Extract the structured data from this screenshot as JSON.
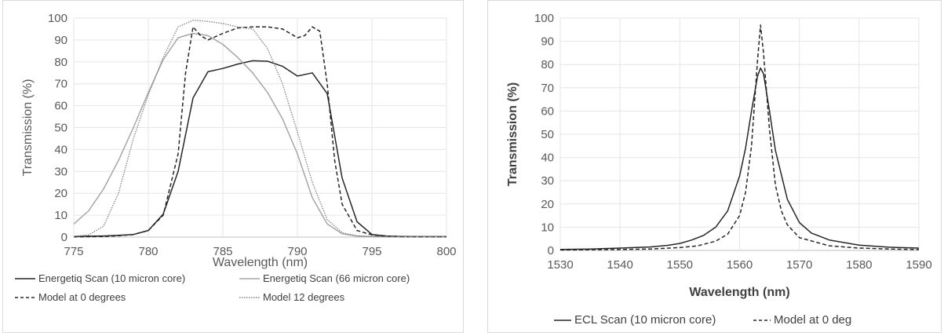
{
  "chart_data": [
    {
      "type": "line",
      "xlabel": "Wavelength (nm)",
      "ylabel": "Transmission (%)",
      "xlim": [
        775,
        800
      ],
      "ylim": [
        0,
        100
      ],
      "x_ticks": [
        "775",
        "780",
        "785",
        "790",
        "795",
        "800"
      ],
      "y_ticks": [
        "0",
        "10",
        "20",
        "30",
        "40",
        "50",
        "60",
        "70",
        "80",
        "90",
        "100"
      ],
      "grid": "major vertical and horizontal",
      "legend_position": "bottom",
      "series": [
        {
          "name": "Energetiq Scan (10 micron core)",
          "color": "#262626",
          "dash": "solid",
          "x": [
            775,
            776,
            777,
            778,
            779,
            780,
            781,
            782,
            783,
            784,
            785,
            786,
            787,
            788,
            789,
            790,
            791,
            792,
            793,
            794,
            795,
            796,
            797,
            798,
            799,
            800
          ],
          "y": [
            0.3,
            0.4,
            0.5,
            0.8,
            1.2,
            3,
            10.5,
            30,
            63.5,
            75.5,
            77,
            79,
            80.5,
            80.3,
            78,
            73.5,
            75,
            65.5,
            27,
            7,
            1.2,
            0.5,
            0.3,
            0.2,
            0.2,
            0.2
          ]
        },
        {
          "name": "Energetiq Scan (66 micron core)",
          "color": "#a6a6a6",
          "dash": "solid",
          "x": [
            775,
            776,
            777,
            778,
            779,
            780,
            781,
            782,
            783,
            784,
            785,
            786,
            787,
            788,
            789,
            790,
            791,
            792,
            793,
            794,
            795,
            796,
            797,
            798,
            799,
            800
          ],
          "y": [
            6,
            12,
            22,
            35,
            50,
            66,
            81,
            91,
            93,
            92,
            88,
            82,
            75,
            66,
            54,
            38,
            18,
            6,
            1.5,
            0.5,
            0.2,
            0.2,
            0.1,
            0.1,
            0.1,
            0.1
          ]
        },
        {
          "name": "Model at 0 degrees",
          "color": "#262626",
          "dash": "dashed",
          "x": [
            775,
            776,
            777,
            778,
            779,
            780,
            781,
            782,
            782.5,
            783,
            783.5,
            784,
            785,
            786,
            787,
            788,
            789,
            790,
            790.5,
            791,
            791.5,
            792,
            792.5,
            793,
            794,
            795,
            796,
            797,
            798,
            799,
            800
          ],
          "y": [
            0.1,
            0.2,
            0.3,
            0.6,
            1.2,
            3,
            10,
            38,
            75,
            96,
            92,
            90,
            93,
            95.5,
            96,
            96,
            95,
            91,
            92,
            96,
            94,
            70,
            35,
            15,
            3,
            1,
            0.4,
            0.2,
            0.1,
            0.1,
            0.1
          ]
        },
        {
          "name": "Model 12 degrees",
          "color": "#7f7f7f",
          "dash": "dotted",
          "x": [
            775,
            776,
            777,
            778,
            779,
            780,
            781,
            782,
            783,
            784,
            785,
            786,
            787,
            788,
            789,
            790,
            791,
            792,
            793,
            794,
            795,
            796,
            797,
            798,
            799,
            800
          ],
          "y": [
            0.3,
            1,
            5,
            20,
            45,
            65,
            82,
            96,
            99,
            98.5,
            97.5,
            96,
            95,
            86,
            70,
            48,
            25,
            8,
            2,
            0.5,
            0.2,
            0.1,
            0.1,
            0.1,
            0.1,
            0.1
          ]
        }
      ]
    },
    {
      "type": "line",
      "xlabel": "Wavelength (nm)",
      "ylabel": "Transmission (%)",
      "xlim": [
        1530,
        1590
      ],
      "ylim": [
        0,
        100
      ],
      "x_ticks": [
        "1530",
        "1540",
        "1550",
        "1560",
        "1570",
        "1580",
        "1590"
      ],
      "y_ticks": [
        "0",
        "10",
        "20",
        "30",
        "40",
        "50",
        "60",
        "70",
        "80",
        "90",
        "100"
      ],
      "grid": "major vertical and horizontal",
      "legend_position": "bottom",
      "series": [
        {
          "name": "ECL Scan (10 micron core)",
          "color": "#262626",
          "dash": "solid",
          "x": [
            1530,
            1535,
            1540,
            1545,
            1548,
            1550,
            1552,
            1554,
            1556,
            1558,
            1560,
            1561,
            1562,
            1563,
            1563.5,
            1564,
            1565,
            1566,
            1568,
            1570,
            1572,
            1575,
            1580,
            1585,
            1590
          ],
          "y": [
            0.4,
            0.6,
            1,
            1.5,
            2.2,
            3,
            4.5,
            6.5,
            10,
            17,
            32,
            44,
            60,
            75,
            78.5,
            76,
            60,
            43,
            22,
            12,
            7.5,
            4.5,
            2.3,
            1.4,
            1
          ]
        },
        {
          "name": "Model at 0 deg",
          "color": "#262626",
          "dash": "dashed",
          "x": [
            1530,
            1535,
            1540,
            1545,
            1550,
            1553,
            1556,
            1558,
            1560,
            1561,
            1562,
            1563,
            1563.5,
            1564,
            1565,
            1566,
            1567,
            1568,
            1570,
            1575,
            1580,
            1585,
            1590
          ],
          "y": [
            0.2,
            0.3,
            0.4,
            0.6,
            1.2,
            2,
            4,
            7,
            15,
            25,
            45,
            82,
            97,
            85,
            52,
            28,
            17,
            11,
            5.5,
            2,
            1,
            0.6,
            0.4
          ]
        }
      ]
    }
  ]
}
